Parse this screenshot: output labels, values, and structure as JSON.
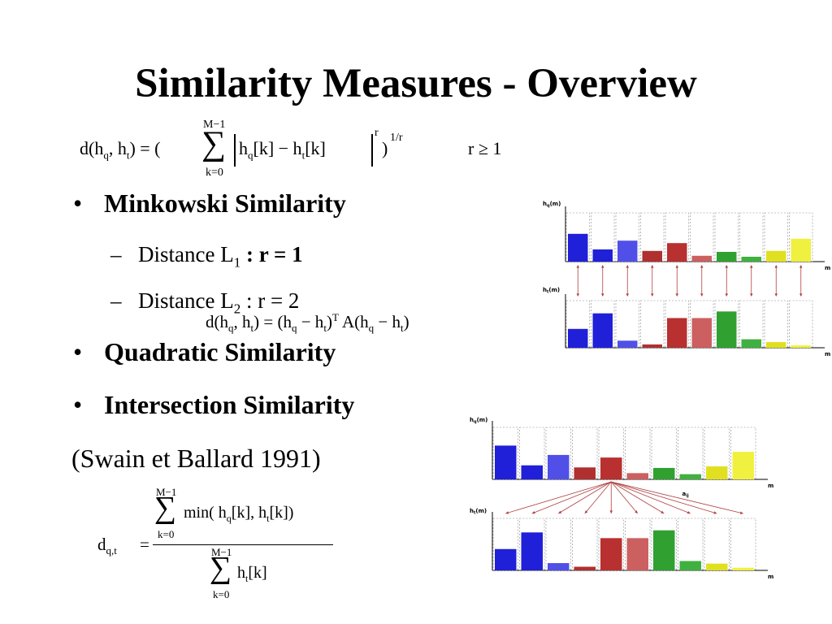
{
  "slide": {
    "title": "Similarity Measures - Overview",
    "formula_minkowski": {
      "d": "d(h",
      "q": "q",
      "comma": ", h",
      "t": "t",
      "eq": ") = (",
      "sum_top": "M−1",
      "sum_bottom": "k=0",
      "body1": "h",
      "body_q": "q",
      "body2": "[k] − h",
      "body_t": "t",
      "body3": "[k]",
      "exp_r": "r",
      "close": ")",
      "exp_1r": "1/r",
      "cond": "r ≥ 1"
    },
    "bullets": [
      {
        "label": "Minkowski Similarity"
      },
      {
        "label": "Quadratic Similarity"
      },
      {
        "label": "Intersection Similarity"
      }
    ],
    "sub_bullets": [
      {
        "dash": "–",
        "text": "Distance L",
        "subscript": "1",
        "rest": " : r = 1"
      },
      {
        "dash": "–",
        "text": "Distance L",
        "subscript": "2",
        "rest": " : r = 2"
      }
    ],
    "bullet_char": "•",
    "formula_quadratic": {
      "p1": "d(h",
      "q": "q",
      "p2": ", h",
      "t": "t",
      "p3": ") = (h",
      "q2": "q",
      "p4": " − h",
      "t2": "t",
      "p5": ")",
      "sup": "T",
      "p6": " A(h",
      "q3": "q",
      "p7": " − h",
      "t3": "t",
      "p8": ")"
    },
    "citation": "(Swain et Ballard 1991)",
    "formula_intersection": {
      "d": "d",
      "sub": "q,t",
      "eq": "=",
      "num_top": "M−1",
      "num_bottom": "k=0",
      "num_body": "min( h",
      "num_q": "q",
      "num_mid": "[k], h",
      "num_t": "t",
      "num_end": "[k])",
      "den_top": "M−1",
      "den_bottom": "k=0",
      "den_body": "h",
      "den_t": "t",
      "den_end": "[k]"
    }
  },
  "chart_data": [
    {
      "type": "bar",
      "panel": "quadratic",
      "series": [
        {
          "name": "hq(m)",
          "values": [
            0.57,
            0.25,
            0.43,
            0.22,
            0.38,
            0.12,
            0.2,
            0.1,
            0.22,
            0.47
          ]
        },
        {
          "name": "ht(m)",
          "values": [
            0.4,
            0.73,
            0.15,
            0.07,
            0.63,
            0.63,
            0.77,
            0.18,
            0.12,
            0.05
          ]
        }
      ],
      "colors": [
        "#2020d8",
        "#2020d8",
        "#5050e8",
        "#b03030",
        "#b83030",
        "#cc6060",
        "#30a030",
        "#40b040",
        "#e0e020",
        "#f0f040"
      ],
      "xlabel": "m",
      "connector": "vertical-arrows"
    },
    {
      "type": "bar",
      "panel": "intersection",
      "series": [
        {
          "name": "hq(m)",
          "values": [
            0.65,
            0.27,
            0.47,
            0.23,
            0.42,
            0.12,
            0.22,
            0.1,
            0.25,
            0.53
          ]
        },
        {
          "name": "ht(m)",
          "values": [
            0.41,
            0.73,
            0.14,
            0.07,
            0.62,
            0.62,
            0.77,
            0.18,
            0.13,
            0.05
          ]
        }
      ],
      "colors": [
        "#2020d8",
        "#2020d8",
        "#5050e8",
        "#b03030",
        "#b83030",
        "#cc6060",
        "#30a030",
        "#40b040",
        "#e0e020",
        "#f0f040"
      ],
      "xlabel": "m",
      "connector_label": "aij",
      "connector": "fan-arrows"
    }
  ]
}
